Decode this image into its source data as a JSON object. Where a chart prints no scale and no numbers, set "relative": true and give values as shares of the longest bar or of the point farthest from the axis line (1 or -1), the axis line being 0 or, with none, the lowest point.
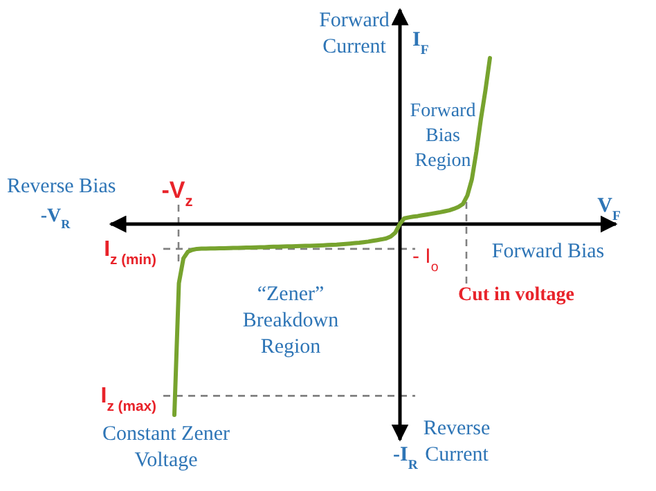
{
  "chart_data": {
    "type": "line",
    "relative": true,
    "categories": [
      null,
      null,
      null,
      null,
      null,
      null,
      null,
      null,
      null,
      null,
      null,
      null,
      null,
      null,
      null,
      null,
      null,
      null,
      null,
      null,
      null,
      null,
      null,
      null,
      null,
      null,
      null,
      null,
      null,
      null,
      null,
      null,
      null,
      null,
      null,
      null,
      null,
      null,
      null,
      null,
      null,
      null,
      null,
      null,
      null,
      null,
      null,
      null,
      null,
      null,
      null,
      null,
      null,
      null,
      null,
      null,
      null,
      null,
      null,
      null,
      null,
      null,
      null,
      null,
      null,
      null,
      null,
      null,
      null,
      null,
      null
    ],
    "series": [
      {
        "color": "#77a32e",
        "values": [
          -1.0,
          -0.31,
          -0.18,
          -0.145,
          -0.135,
          -0.13,
          -0.129,
          -0.129,
          -0.128,
          -0.128,
          -0.127,
          -0.127,
          -0.126,
          -0.125,
          -0.125,
          -0.124,
          -0.123,
          -0.123,
          -0.122,
          -0.121,
          -0.121,
          -0.12,
          -0.119,
          -0.119,
          -0.118,
          -0.117,
          -0.117,
          -0.116,
          -0.115,
          -0.114,
          -0.114,
          -0.113,
          -0.112,
          -0.111,
          -0.11,
          -0.109,
          -0.108,
          -0.106,
          -0.104,
          -0.102,
          -0.1,
          -0.098,
          -0.095,
          -0.092,
          -0.088,
          -0.084,
          -0.08,
          -0.075,
          -0.065,
          -0.045,
          0,
          0.03,
          0.035,
          0.039,
          0.042,
          0.046,
          0.05,
          0.054,
          0.058,
          0.062,
          0.067,
          0.072,
          0.08,
          0.09,
          0.105,
          0.15,
          0.235,
          0.38,
          0.55,
          0.7,
          0.87
        ]
      }
    ],
    "ref_lines": [
      {
        "axis": "y",
        "value": -0.13,
        "label": "I$_{z (min)}$",
        "color": "#808080",
        "line_style": "dashed"
      },
      {
        "axis": "y",
        "value": -0.9,
        "label": "I$_{z (max)}$",
        "color": "#808080",
        "line_style": "dashed"
      }
    ],
    "annotations": [
      "Reverse Bias",
      "-V$_{R}$",
      "V$_{F}$",
      "Forward Bias",
      "Forward Current",
      "I$_{F}$",
      "Forward Bias Region",
      "“Zener” Breakdown Region",
      "Constant Zener Voltage",
      "Reverse Current",
      "-I$_{R}$",
      "- I$_{o}$",
      "-V$_{z}$",
      "Cut in voltage"
    ]
  }
}
